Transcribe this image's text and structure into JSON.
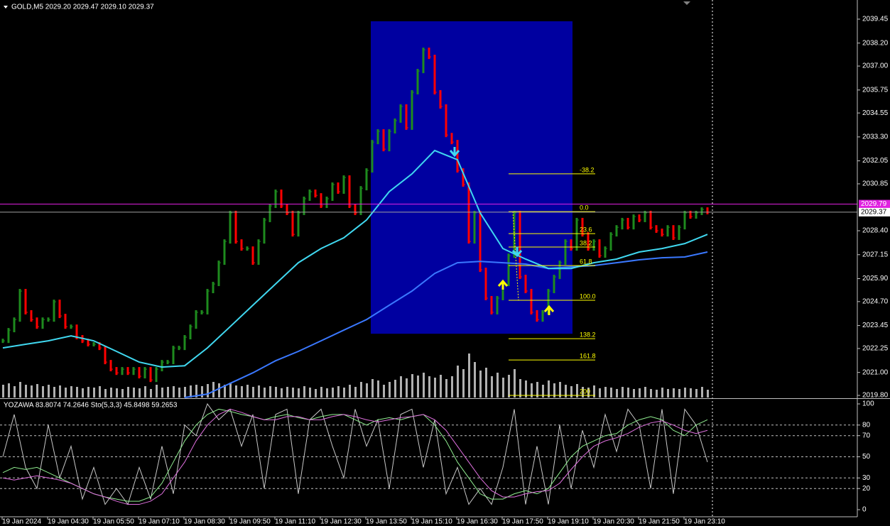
{
  "chart_data": {
    "type": "bar",
    "header": "GOLD,M5  2029.20 2029.47 2029.10 2029.37",
    "categories": [
      "19 Jan 2024",
      null,
      null,
      null,
      null,
      null,
      null,
      null,
      "19 Jan 04:30",
      null,
      null,
      null,
      null,
      null,
      null,
      null,
      "19 Jan 05:50",
      null,
      null,
      null,
      null,
      null,
      null,
      null,
      "19 Jan 07:10",
      null,
      null,
      null,
      null,
      null,
      null,
      null,
      "19 Jan 08:30",
      null,
      null,
      null,
      null,
      null,
      null,
      null,
      "19 Jan 09:50",
      null,
      null,
      null,
      null,
      null,
      null,
      null,
      "19 Jan 11:10",
      null,
      null,
      null,
      null,
      null,
      null,
      null,
      "19 Jan 12:30",
      null,
      null,
      null,
      null,
      null,
      null,
      null,
      "19 Jan 13:50",
      null,
      null,
      null,
      null,
      null,
      null,
      null,
      "19 Jan 15:10",
      null,
      null,
      null,
      null,
      null,
      null,
      null,
      "19 Jan 16:30",
      null,
      null,
      null,
      null,
      null,
      null,
      null,
      "19 Jan 17:50",
      null,
      null,
      null,
      null,
      null,
      null,
      null,
      "19 Jan 19:10",
      null,
      null,
      null,
      null,
      null,
      null,
      null,
      "19 Jan 20:30",
      null,
      null,
      null,
      null,
      null,
      null,
      null,
      "19 Jan 21:50",
      null,
      null,
      null,
      null,
      null,
      null,
      null,
      "19 Jan 23:10",
      null,
      null,
      null,
      null
    ],
    "close": [
      2022.65,
      2023.21,
      2023.76,
      2025.25,
      2024.14,
      2023.76,
      2023.39,
      2023.76,
      2023.76,
      2024.69,
      2023.95,
      2023.39,
      2023.39,
      2022.84,
      2022.65,
      2022.47,
      2022.47,
      2022.28,
      2021.54,
      2021.17,
      2020.98,
      2021.17,
      2020.98,
      2021.17,
      2020.8,
      2021.17,
      2020.61,
      2021.17,
      2021.54,
      2021.54,
      2022.28,
      2022.28,
      2022.84,
      2023.39,
      2024.14,
      2024.14,
      2025.25,
      2025.62,
      2026.73,
      2027.84,
      2029.33,
      2027.84,
      2027.47,
      2027.47,
      2026.73,
      2027.84,
      2028.96,
      2029.7,
      2030.44,
      2029.7,
      2029.33,
      2028.21,
      2029.33,
      2030.07,
      2030.44,
      2030.25,
      2029.7,
      2030.07,
      2030.81,
      2030.44,
      2031.18,
      2029.7,
      2029.33,
      2030.62,
      2031.55,
      2033.03,
      2033.59,
      2032.66,
      2033.59,
      2034.15,
      2034.89,
      2033.78,
      2035.63,
      2036.74,
      2037.85,
      2037.48,
      2035.63,
      2034.89,
      2033.4,
      2033.03,
      2031.55,
      2030.81,
      2027.84,
      2029.33,
      2026.36,
      2024.88,
      2024.14,
      2024.88,
      2025.62,
      2027.1,
      2029.33,
      2025.99,
      2025.25,
      2024.14,
      2023.76,
      2024.14,
      2025.25,
      2025.99,
      2026.73,
      2027.84,
      2027.47,
      2028.96,
      2028.21,
      2027.47,
      2027.84,
      2027.1,
      2027.47,
      2028.21,
      2028.58,
      2028.96,
      2028.58,
      2029.14,
      2028.96,
      2029.33,
      2028.58,
      2028.4,
      2028.21,
      2028.58,
      2028.03,
      2028.58,
      2029.33,
      2029.14,
      2029.33,
      2029.51,
      2029.37
    ],
    "color_up": "#1e8b1e",
    "color_down": "#ff0000",
    "volume": [
      18,
      20,
      16,
      22,
      18,
      17,
      19,
      16,
      18,
      15,
      17,
      14,
      16,
      15,
      13,
      15,
      14,
      16,
      12,
      14,
      13,
      12,
      15,
      14,
      13,
      16,
      12,
      18,
      14,
      15,
      16,
      14,
      15,
      17,
      18,
      16,
      19,
      22,
      20,
      18,
      21,
      17,
      16,
      18,
      15,
      17,
      14,
      16,
      15,
      13,
      15,
      14,
      13,
      16,
      14,
      12,
      15,
      13,
      14,
      16,
      14,
      18,
      15,
      22,
      20,
      26,
      24,
      18,
      22,
      25,
      30,
      27,
      33,
      31,
      35,
      30,
      28,
      32,
      26,
      30,
      45,
      40,
      62,
      50,
      38,
      42,
      30,
      35,
      28,
      32,
      40,
      26,
      24,
      20,
      22,
      18,
      24,
      20,
      22,
      18,
      16,
      19,
      15,
      14,
      17,
      13,
      15,
      14,
      12,
      15,
      14,
      12,
      13,
      15,
      12,
      11,
      14,
      12,
      13,
      12,
      14,
      13,
      12,
      15,
      11
    ],
    "volume_color": "#b0b0b0",
    "ylim": [
      2019.69,
      2040.45
    ],
    "yticks": [
      2039.45,
      {
        "value": 2038.2,
        "label": "2038.20"
      },
      {
        "value": 2037,
        "label": "2037.00"
      },
      2035.75,
      2034.55,
      {
        "value": 2033.3,
        "label": "2033.30"
      },
      2032.05,
      2030.85,
      {
        "value": 2028.4,
        "label": "2028.40"
      },
      2027.15,
      {
        "value": 2025.9,
        "label": "2025.90"
      },
      {
        "value": 2024.7,
        "label": "2024.70"
      },
      2023.45,
      2022.25,
      {
        "value": 2021,
        "label": "2021.00"
      },
      {
        "value": 2019.8,
        "label": "2019.80"
      }
    ],
    "ma_fast": {
      "color": "#40d8f0",
      "values": [
        2022.28,
        2022.47,
        2022.65,
        2022.91,
        2022.65,
        2022.1,
        2021.54,
        2021.28,
        2021.35,
        2022.28,
        2023.39,
        2024.51,
        2025.62,
        2026.73,
        2027.47,
        2028.03,
        2028.96,
        2030.44,
        2031.37,
        2032.59,
        2032.11,
        2029.33,
        2027.47,
        2026.92,
        2026.43,
        2026.43,
        2026.73,
        2026.92,
        2027.29,
        2027.47,
        2027.73,
        2028.21
      ]
    },
    "ma_slow": {
      "color": "#3a78ff",
      "values": [
        null,
        null,
        null,
        null,
        null,
        null,
        null,
        null,
        2019.69,
        2019.87,
        2020.43,
        2020.98,
        2021.61,
        2022.1,
        2022.65,
        2023.21,
        2023.76,
        2024.51,
        2025.25,
        2026.17,
        2026.73,
        2026.8,
        2026.73,
        2026.66,
        2026.43,
        2026.51,
        2026.58,
        2026.73,
        2026.88,
        2026.99,
        2027.03,
        2027.29
      ]
    },
    "box": {
      "high": 2039.34,
      "low": 2023.02,
      "color": "#0000a0"
    },
    "fib_color": "#ffff00",
    "fib": [
      {
        "label": "-38.2",
        "price": 2031.37
      },
      {
        "label": "0.0",
        "price": 2029.4
      },
      {
        "label": "23.6",
        "price": 2028.25
      },
      {
        "label": "38.2",
        "price": 2027.55
      },
      {
        "label": "61.8",
        "price": 2026.58
      },
      {
        "label": "100.0",
        "price": 2024.77
      },
      {
        "label": "138.2",
        "price": 2022.76
      },
      {
        "label": "161.8",
        "price": 2021.65
      },
      {
        "label": "200",
        "price": 2019.8
      }
    ],
    "alert_price": 2029.79,
    "alert_color": "#e020e0",
    "last_price": 2029.37,
    "stochastic": {
      "header": "YOZAWA 83.8074 74.2646  Sto(5,3,3) 45.8498 59.2653",
      "ylim": [
        0,
        100
      ],
      "yticks": [
        100,
        80,
        70,
        50,
        30,
        20,
        0
      ],
      "series": [
        {
          "color": "#c8c8c8",
          "values": [
            50,
            90,
            40,
            20,
            80,
            30,
            60,
            10,
            40,
            5,
            20,
            5,
            40,
            10,
            60,
            15,
            80,
            70,
            100,
            85,
            95,
            60,
            90,
            20,
            90,
            95,
            15,
            85,
            95,
            60,
            30,
            95,
            60,
            85,
            20,
            90,
            95,
            40,
            85,
            15,
            40,
            5,
            20,
            5,
            40,
            95,
            5,
            60,
            5,
            80,
            20,
            75,
            40,
            90,
            55,
            95,
            80,
            20,
            95,
            15,
            95,
            80,
            45
          ]
        },
        {
          "color": "#90ee90",
          "values": [
            35,
            40,
            38,
            40,
            35,
            30,
            25,
            20,
            15,
            12,
            10,
            8,
            8,
            12,
            25,
            45,
            65,
            80,
            90,
            95,
            93,
            90,
            88,
            85,
            88,
            90,
            87,
            85,
            88,
            90,
            90,
            85,
            80,
            85,
            87,
            85,
            88,
            90,
            80,
            65,
            45,
            30,
            15,
            10,
            10,
            15,
            18,
            15,
            20,
            35,
            50,
            60,
            65,
            70,
            72,
            80,
            85,
            88,
            85,
            75,
            70,
            80,
            85
          ]
        },
        {
          "color": "#e070e0",
          "values": [
            30,
            28,
            30,
            32,
            30,
            28,
            25,
            20,
            15,
            12,
            8,
            5,
            5,
            8,
            15,
            30,
            45,
            65,
            80,
            90,
            95,
            92,
            88,
            85,
            85,
            88,
            88,
            85,
            85,
            88,
            90,
            88,
            85,
            83,
            85,
            87,
            88,
            90,
            85,
            75,
            60,
            45,
            30,
            18,
            12,
            12,
            15,
            17,
            18,
            25,
            38,
            50,
            60,
            65,
            68,
            72,
            78,
            82,
            84,
            80,
            75,
            72,
            75
          ]
        }
      ]
    }
  }
}
